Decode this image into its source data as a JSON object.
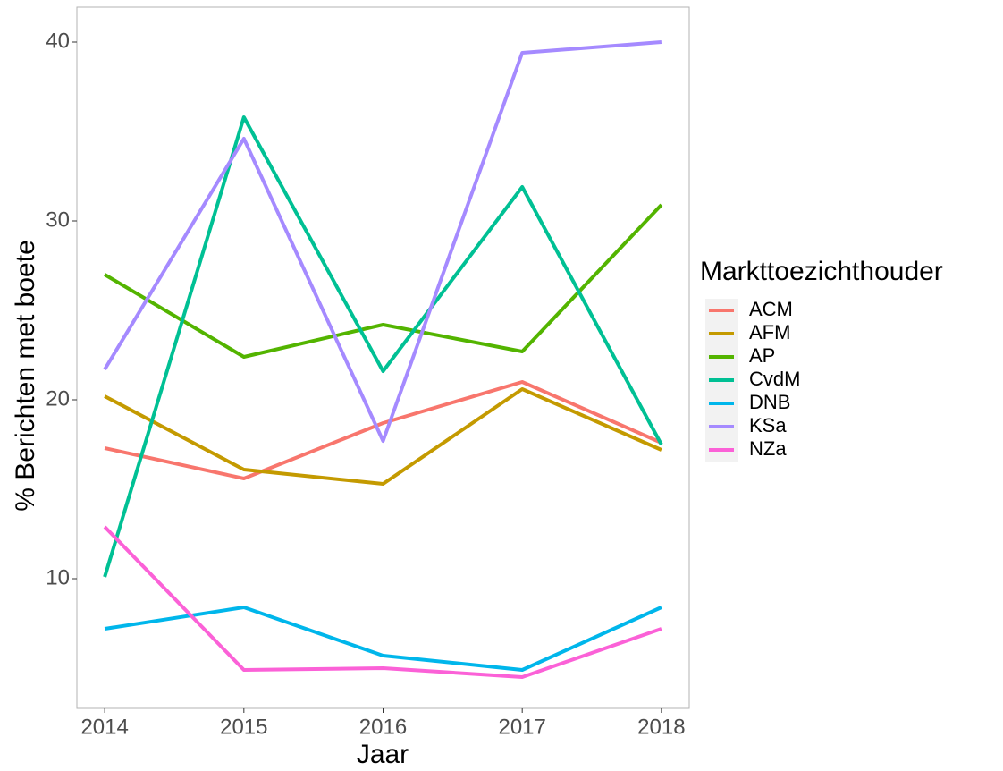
{
  "chart_data": {
    "type": "line",
    "x_label": "Jaar",
    "y_label": "% Berichten met boete",
    "legend_title": "Markttoezichthouder",
    "legend_position": "right",
    "grid": false,
    "x": [
      2014,
      2015,
      2016,
      2017,
      2018
    ],
    "xlim": [
      2013.8,
      2018.2
    ],
    "xticks": [
      2014,
      2015,
      2016,
      2017,
      2018
    ],
    "ylim": [
      2.75,
      41.95
    ],
    "yticks": [
      10,
      20,
      30,
      40
    ],
    "series": [
      {
        "name": "ACM",
        "color": "#F8766D",
        "values": [
          17.3,
          15.6,
          18.7,
          21.0,
          17.6
        ]
      },
      {
        "name": "AFM",
        "color": "#C49A00",
        "values": [
          20.2,
          16.1,
          15.3,
          20.6,
          17.2
        ]
      },
      {
        "name": "AP",
        "color": "#53B400",
        "values": [
          27.0,
          22.4,
          24.2,
          22.7,
          30.9
        ]
      },
      {
        "name": "CvdM",
        "color": "#00C094",
        "values": [
          10.1,
          35.8,
          21.6,
          31.9,
          17.5
        ]
      },
      {
        "name": "DNB",
        "color": "#00B6EB",
        "values": [
          7.2,
          8.4,
          5.7,
          4.9,
          8.4
        ]
      },
      {
        "name": "KSa",
        "color": "#A58AFF",
        "values": [
          21.7,
          34.6,
          17.7,
          39.4,
          40.0
        ]
      },
      {
        "name": "NZa",
        "color": "#FB61D7",
        "values": [
          12.9,
          4.9,
          5.0,
          4.5,
          7.2
        ]
      }
    ]
  }
}
